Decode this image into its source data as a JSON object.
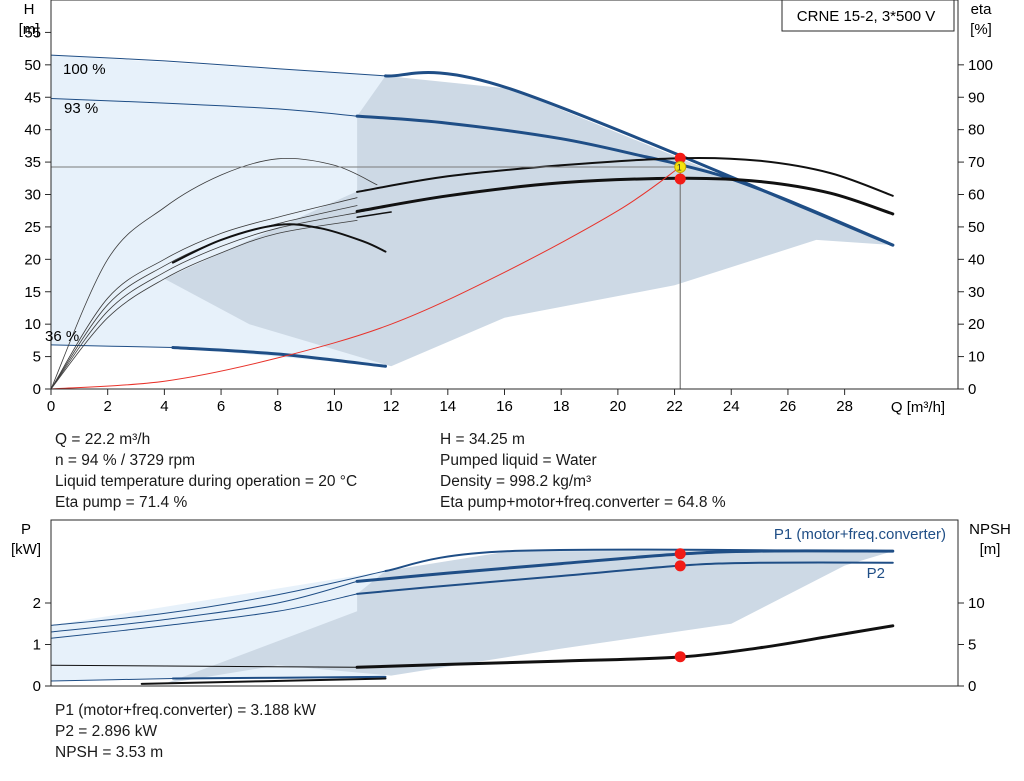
{
  "pump_title": "CRNE 15-2, 3*500 V",
  "colors": {
    "curve_blue": "#1f4e86",
    "region_light": "#e7f1fa",
    "region_dark": "#cdd9e5",
    "black": "#111111",
    "system_red": "#e8322a",
    "marker_red": "#f21b16",
    "marker_yellow": "#f3e30e",
    "grid": "#2a2a2a"
  },
  "info": {
    "left": [
      "Q = 22.2 m³/h",
      "n = 94 % / 3729 rpm",
      "Liquid temperature during operation = 20 °C",
      "Eta pump = 71.4 %"
    ],
    "right": [
      "H = 34.25 m",
      "Pumped liquid = Water",
      "Density = 998.2 kg/m³",
      "Eta pump+motor+freq.converter = 64.8 %"
    ],
    "bottom": [
      "P1 (motor+freq.converter) = 3.188 kW",
      "P2 = 2.896 kW",
      "NPSH = 3.53 m"
    ]
  },
  "chart_data": [
    {
      "type": "line",
      "id": "head_eta",
      "xlabel": "Q [m³/h]",
      "ylabel_left": [
        "H",
        "[m]"
      ],
      "ylabel_right": [
        "eta",
        "[%]"
      ],
      "xlim": [
        0,
        32
      ],
      "ylim_left": [
        0,
        60
      ],
      "ylim_right": [
        0,
        120
      ],
      "xticks": [
        0,
        2,
        4,
        6,
        8,
        10,
        12,
        14,
        16,
        18,
        20,
        22,
        24,
        26,
        28
      ],
      "yticks_left": [
        0,
        5,
        10,
        15,
        20,
        25,
        30,
        35,
        40,
        45,
        50,
        55
      ],
      "yticks_right": [
        0,
        10,
        20,
        30,
        40,
        50,
        60,
        70,
        80,
        90,
        100
      ],
      "grid": false,
      "regions": [
        {
          "fill": "light",
          "points": [
            [
              0,
              51.5
            ],
            [
              11.8,
              48.3
            ],
            [
              11.8,
              3.5
            ],
            [
              4.3,
              6.4
            ],
            [
              0,
              6.8
            ]
          ]
        },
        {
          "fill": "dark",
          "points": [
            [
              10.8,
              42.1
            ],
            [
              11.8,
              48.3
            ],
            [
              16.2,
              46.3
            ],
            [
              29.7,
              22.2
            ],
            [
              27.0,
              23.0
            ],
            [
              22.0,
              16.0
            ],
            [
              16.0,
              11.0
            ],
            [
              12.0,
              3.5
            ],
            [
              7.0,
              10.0
            ],
            [
              4.0,
              17.0
            ],
            [
              10.8,
              30.5
            ]
          ]
        }
      ],
      "series": [
        {
          "name": "100 %",
          "color": "blue",
          "width": 1,
          "points": [
            [
              0,
              51.5
            ],
            [
              4,
              50.6
            ],
            [
              8,
              49.4
            ],
            [
              11.8,
              48.3
            ]
          ]
        },
        {
          "name": "",
          "color": "blue",
          "width": 3,
          "points": [
            [
              11.8,
              48.3
            ],
            [
              16.2,
              46.3
            ],
            [
              29.7,
              22.2
            ]
          ]
        },
        {
          "name": "93 %",
          "color": "blue",
          "width": 1,
          "points": [
            [
              0,
              44.8
            ],
            [
              4,
              44.1
            ],
            [
              8,
              43.2
            ],
            [
              10.8,
              42.1
            ]
          ]
        },
        {
          "name": "",
          "color": "blue",
          "width": 3,
          "points": [
            [
              10.8,
              42.1
            ],
            [
              14,
              41.0
            ],
            [
              18,
              38.6
            ],
            [
              21,
              35.8
            ],
            [
              22.2,
              34.6
            ],
            [
              24,
              32.4
            ],
            [
              26.5,
              28.2
            ],
            [
              29.7,
              22.2
            ]
          ]
        },
        {
          "name": "36 %",
          "color": "blue",
          "width": 1,
          "points": [
            [
              0,
              6.8
            ],
            [
              4.3,
              6.4
            ]
          ]
        },
        {
          "name": "",
          "color": "blue",
          "width": 3,
          "points": [
            [
              4.3,
              6.4
            ],
            [
              8,
              5.4
            ],
            [
              11.8,
              3.5
            ]
          ]
        },
        {
          "name": "",
          "color": "thin",
          "width": 0.8,
          "points": [
            [
              0,
              0
            ],
            [
              2,
              20
            ],
            [
              4,
              28
            ],
            [
              6,
              33
            ],
            [
              8,
              35.5
            ],
            [
              10,
              34.5
            ],
            [
              11.5,
              31.5
            ]
          ]
        },
        {
          "name": "",
          "color": "thin",
          "width": 0.8,
          "points": [
            [
              0,
              0
            ],
            [
              2,
              14
            ],
            [
              4,
              20
            ],
            [
              6,
              24
            ],
            [
              8,
              26.5
            ],
            [
              10.8,
              29.5
            ]
          ]
        },
        {
          "name": "",
          "color": "thin",
          "width": 0.8,
          "points": [
            [
              0,
              0
            ],
            [
              2,
              13
            ],
            [
              4,
              19
            ],
            [
              6,
              23
            ],
            [
              8,
              25.5
            ],
            [
              10.8,
              28.3
            ]
          ]
        },
        {
          "name": "",
          "color": "thin",
          "width": 0.8,
          "points": [
            [
              0,
              0
            ],
            [
              2,
              12
            ],
            [
              4,
              18
            ],
            [
              6,
              22
            ],
            [
              8,
              24.8
            ],
            [
              10.8,
              27.2
            ]
          ]
        },
        {
          "name": "",
          "color": "thin",
          "width": 0.8,
          "points": [
            [
              0,
              0
            ],
            [
              2,
              11
            ],
            [
              4,
              17
            ],
            [
              6,
              21
            ],
            [
              8,
              24
            ],
            [
              10.8,
              26.0
            ]
          ]
        },
        {
          "name": "",
          "color": "black",
          "width": 2,
          "points": [
            [
              4.3,
              19.5
            ],
            [
              6,
              23
            ],
            [
              8,
              25.3
            ],
            [
              9.5,
              24.8
            ],
            [
              11,
              22.8
            ],
            [
              11.8,
              21.2
            ]
          ]
        },
        {
          "name": "",
          "color": "black",
          "width": 2,
          "points": [
            [
              10.8,
              30.4
            ],
            [
              14,
              32.8
            ],
            [
              18,
              34.5
            ],
            [
              22.2,
              35.6
            ],
            [
              25,
              35.2
            ],
            [
              27.5,
              33.3
            ],
            [
              29.7,
              29.8
            ]
          ]
        },
        {
          "name": "",
          "color": "black",
          "width": 3,
          "points": [
            [
              10.8,
              27.4
            ],
            [
              14,
              29.8
            ],
            [
              18,
              31.8
            ],
            [
              22.2,
              32.5
            ],
            [
              25,
              32.0
            ],
            [
              27.5,
              30.2
            ],
            [
              29.7,
              27.0
            ]
          ]
        },
        {
          "name": "",
          "color": "black",
          "width": 1.5,
          "points": [
            [
              10.8,
              26.5
            ],
            [
              12,
              27.3
            ]
          ]
        },
        {
          "name": "",
          "color": "red",
          "width": 1,
          "points": [
            [
              0,
              0
            ],
            [
              4,
              1.2
            ],
            [
              8,
              4.8
            ],
            [
              12,
              10
            ],
            [
              16,
              18
            ],
            [
              20,
              27.5
            ],
            [
              22.2,
              34.25
            ]
          ]
        }
      ],
      "operating_point": {
        "q": 22.2,
        "h": 34.25,
        "label": "1"
      },
      "markers": [
        {
          "q": 22.2,
          "h": 35.6
        },
        {
          "q": 22.2,
          "h": 32.4
        }
      ]
    },
    {
      "type": "line",
      "id": "power_npsh",
      "ylabel_left": [
        "P",
        "[kW]"
      ],
      "ylabel_right": [
        "NPSH",
        "[m]"
      ],
      "xlim": [
        0,
        32
      ],
      "ylim_left": [
        0,
        4
      ],
      "ylim_right": [
        0,
        20
      ],
      "yticks_left": [
        0,
        1,
        2
      ],
      "yticks_right": [
        0,
        5,
        10
      ],
      "legend": [
        "P1 (motor+freq.converter)",
        "P2"
      ],
      "grid": false,
      "regions": [
        {
          "fill": "light",
          "points": [
            [
              0,
              1.46
            ],
            [
              11.8,
              2.77
            ],
            [
              11.8,
              0.22
            ],
            [
              4.3,
              0.18
            ],
            [
              0,
              0.12
            ]
          ]
        },
        {
          "fill": "dark",
          "points": [
            [
              10.8,
              2.22
            ],
            [
              11.8,
              2.77
            ],
            [
              16.2,
              3.25
            ],
            [
              29.7,
              3.25
            ],
            [
              28,
              2.9
            ],
            [
              24,
              1.5
            ],
            [
              18,
              0.9
            ],
            [
              12,
              0.25
            ],
            [
              8,
              0.5
            ],
            [
              4,
              0.05
            ],
            [
              10.8,
              1.8
            ]
          ]
        }
      ],
      "series": [
        {
          "name": "P1 (motor+freq.converter)",
          "color": "blue",
          "width": 3,
          "points": [
            [
              10.8,
              2.52
            ],
            [
              14,
              2.72
            ],
            [
              18,
              2.95
            ],
            [
              22.2,
              3.18
            ],
            [
              25,
              3.25
            ],
            [
              29.7,
              3.25
            ]
          ]
        },
        {
          "name": "P2",
          "color": "blue",
          "width": 2,
          "points": [
            [
              10.8,
              2.22
            ],
            [
              14,
              2.42
            ],
            [
              18,
              2.65
            ],
            [
              22.2,
              2.9
            ],
            [
              25,
              2.97
            ],
            [
              29.7,
              2.97
            ]
          ]
        },
        {
          "name": "",
          "color": "blue",
          "width": 2,
          "points": [
            [
              11.8,
              2.77
            ],
            [
              16.2,
              3.25
            ],
            [
              29.7,
              3.25
            ]
          ]
        },
        {
          "name": "",
          "color": "blue",
          "width": 1,
          "points": [
            [
              0,
              1.46
            ],
            [
              4,
              1.75
            ],
            [
              8,
              2.2
            ],
            [
              11.8,
              2.77
            ]
          ]
        },
        {
          "name": "",
          "color": "blue",
          "width": 1,
          "points": [
            [
              0,
              1.3
            ],
            [
              4,
              1.6
            ],
            [
              8,
              2.0
            ],
            [
              10.8,
              2.52
            ]
          ]
        },
        {
          "name": "",
          "color": "blue",
          "width": 1,
          "points": [
            [
              0,
              1.15
            ],
            [
              4,
              1.45
            ],
            [
              8,
              1.8
            ],
            [
              10.8,
              2.22
            ]
          ]
        },
        {
          "name": "",
          "color": "blue",
          "width": 2,
          "points": [
            [
              4.3,
              0.18
            ],
            [
              11.8,
              0.22
            ]
          ]
        },
        {
          "name": "",
          "color": "blue",
          "width": 1,
          "points": [
            [
              0,
              0.12
            ],
            [
              4.3,
              0.18
            ]
          ]
        },
        {
          "name": "NPSH",
          "color": "black",
          "width": 3,
          "points": [
            [
              10.8,
              0.45
            ],
            [
              14,
              0.52
            ],
            [
              18,
              0.6
            ],
            [
              22.2,
              0.7
            ],
            [
              25,
              0.92
            ],
            [
              27.5,
              1.2
            ],
            [
              29.7,
              1.45
            ]
          ]
        },
        {
          "name": "",
          "color": "black",
          "width": 1,
          "points": [
            [
              0,
              0.5
            ],
            [
              10.8,
              0.45
            ]
          ]
        },
        {
          "name": "",
          "color": "black",
          "width": 2,
          "points": [
            [
              3.2,
              0.05
            ],
            [
              11.8,
              0.18
            ]
          ]
        }
      ],
      "markers": [
        {
          "q": 22.2,
          "p": 3.188
        },
        {
          "q": 22.2,
          "p": 2.896
        },
        {
          "q": 22.2,
          "p": 0.706
        }
      ]
    }
  ]
}
